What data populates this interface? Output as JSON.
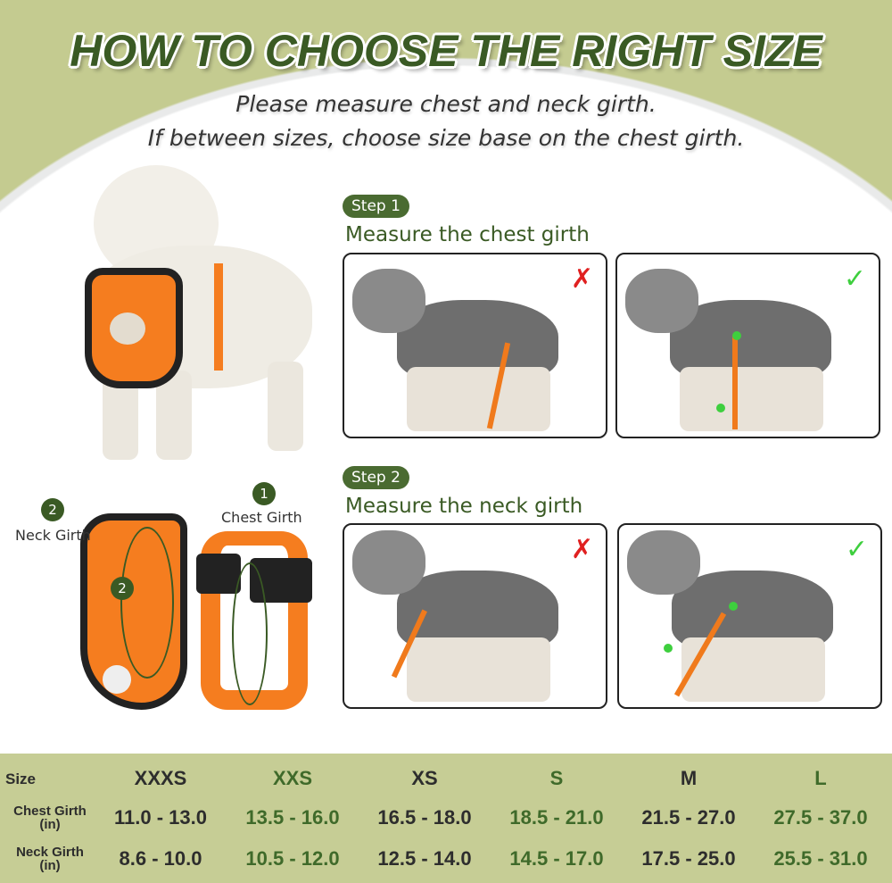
{
  "title": "HOW TO CHOOSE THE RIGHT SIZE",
  "subtitle_lines": [
    "Please measure chest and neck girth.",
    "If between sizes, choose size base on the chest girth."
  ],
  "colors": {
    "accent": "#3a5a24",
    "background_green": "#c4cb90",
    "strap": "#f07a1c",
    "check": "#3ecf3e",
    "cross": "#e02020"
  },
  "steps": [
    {
      "badge": "Step 1",
      "instruction": "Measure the chest girth",
      "wrong_icon": "x-mark-icon",
      "right_icon": "check-mark-icon"
    },
    {
      "badge": "Step 2",
      "instruction": "Measure the neck girth",
      "wrong_icon": "x-mark-icon",
      "right_icon": "check-mark-icon"
    }
  ],
  "harness_labels": [
    {
      "number": "1",
      "label": "Chest Girth"
    },
    {
      "number": "2",
      "label": "Neck Girth"
    }
  ],
  "size_table": {
    "header": "Size",
    "sizes": [
      "XXXS",
      "XXS",
      "XS",
      "S",
      "M",
      "L"
    ],
    "rows": [
      {
        "label": "Chest Girth",
        "unit": "(in)",
        "values": [
          "11.0 - 13.0",
          "13.5 - 16.0",
          "16.5 - 18.0",
          "18.5 - 21.0",
          "21.5 - 27.0",
          "27.5 - 37.0"
        ]
      },
      {
        "label": "Neck Girth",
        "unit": "(in)",
        "values": [
          "8.6 - 10.0",
          "10.5 - 12.0",
          "12.5 - 14.0",
          "14.5 - 17.0",
          "17.5 - 25.0",
          "25.5 - 31.0"
        ]
      }
    ]
  }
}
